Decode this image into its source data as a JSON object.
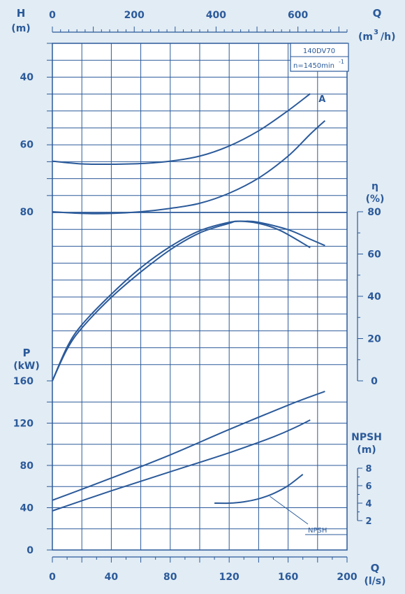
{
  "colors": {
    "ink": "#2b5a9a",
    "background": "#e2ecf4"
  },
  "model_box": {
    "model": "140DV70",
    "speed_prefix": "n=1450min",
    "speed_exp": "-1"
  },
  "chart_data": {
    "type": "line",
    "x_bottom": {
      "label": "Q",
      "unit": "(l/s)",
      "range": [
        0,
        200
      ],
      "ticks": [
        "0",
        "40",
        "80",
        "120",
        "160",
        "200"
      ]
    },
    "x_top": {
      "label": "Q",
      "unit": "(m³/h)",
      "unit_base": "(m",
      "unit_exp": "3",
      "unit_end": "/h)",
      "range": [
        0,
        720
      ],
      "ticks": [
        "0",
        "200",
        "400",
        "600"
      ]
    },
    "head": {
      "label": "H",
      "unit": "(m)",
      "ylim": [
        40,
        80
      ],
      "ticks": [
        "40",
        "60",
        "80"
      ],
      "series": [
        {
          "points": [
            [
              0,
              80
            ],
            [
              20,
              80.5
            ],
            [
              40,
              80.5
            ],
            [
              60,
              80
            ],
            [
              80,
              79
            ],
            [
              100,
              77.5
            ],
            [
              120,
              74.5
            ],
            [
              140,
              70
            ],
            [
              160,
              63.5
            ],
            [
              175,
              57
            ],
            [
              185,
              53
            ]
          ]
        },
        {
          "name": "A",
          "points": [
            [
              0,
              65
            ],
            [
              20,
              65.8
            ],
            [
              40,
              65.9
            ],
            [
              60,
              65.7
            ],
            [
              80,
              65
            ],
            [
              100,
              63.5
            ],
            [
              120,
              60.5
            ],
            [
              140,
              56
            ],
            [
              160,
              50
            ],
            [
              175,
              45
            ]
          ]
        }
      ]
    },
    "efficiency": {
      "label": "η",
      "unit": "(%)",
      "ylim": [
        0,
        80
      ],
      "ticks": [
        "0",
        "20",
        "40",
        "60",
        "80"
      ],
      "series": [
        {
          "points": [
            [
              0,
              0
            ],
            [
              10,
              16
            ],
            [
              20,
              26.5
            ],
            [
              40,
              41
            ],
            [
              60,
              53.5
            ],
            [
              80,
              63.5
            ],
            [
              100,
              71
            ],
            [
              120,
              75
            ],
            [
              130,
              75.5
            ],
            [
              140,
              75
            ],
            [
              160,
              71.5
            ],
            [
              175,
              67
            ],
            [
              185,
              64
            ]
          ]
        },
        {
          "points": [
            [
              0,
              0
            ],
            [
              10,
              15
            ],
            [
              20,
              25
            ],
            [
              40,
              39.5
            ],
            [
              60,
              51.5
            ],
            [
              80,
              62
            ],
            [
              100,
              70
            ],
            [
              120,
              74.5
            ],
            [
              126,
              75.5
            ],
            [
              140,
              74.5
            ],
            [
              155,
              71
            ],
            [
              175,
              63
            ]
          ]
        }
      ]
    },
    "power": {
      "label": "P",
      "unit": "(kW)",
      "ylim": [
        0,
        160
      ],
      "ticks": [
        "0",
        "40",
        "80",
        "120",
        "160"
      ],
      "series": [
        {
          "points": [
            [
              0,
              47
            ],
            [
              40,
              68
            ],
            [
              80,
              90
            ],
            [
              120,
              114
            ],
            [
              160,
              137
            ],
            [
              175,
              145
            ],
            [
              185,
              150
            ]
          ]
        },
        {
          "points": [
            [
              0,
              37
            ],
            [
              40,
              56
            ],
            [
              80,
              74
            ],
            [
              120,
              92
            ],
            [
              150,
              107
            ],
            [
              165,
              116
            ],
            [
              175,
              123
            ]
          ]
        }
      ]
    },
    "npsh": {
      "label": "NPSH",
      "unit": "(m)",
      "ylim": [
        2,
        8
      ],
      "ticks": [
        "2",
        "4",
        "6",
        "8"
      ],
      "series": [
        {
          "name": "NPSH",
          "points": [
            [
              110,
              4
            ],
            [
              120,
              4
            ],
            [
              130,
              4.15
            ],
            [
              140,
              4.5
            ],
            [
              150,
              5.1
            ],
            [
              160,
              6
            ],
            [
              170,
              7.3
            ]
          ]
        }
      ]
    }
  }
}
